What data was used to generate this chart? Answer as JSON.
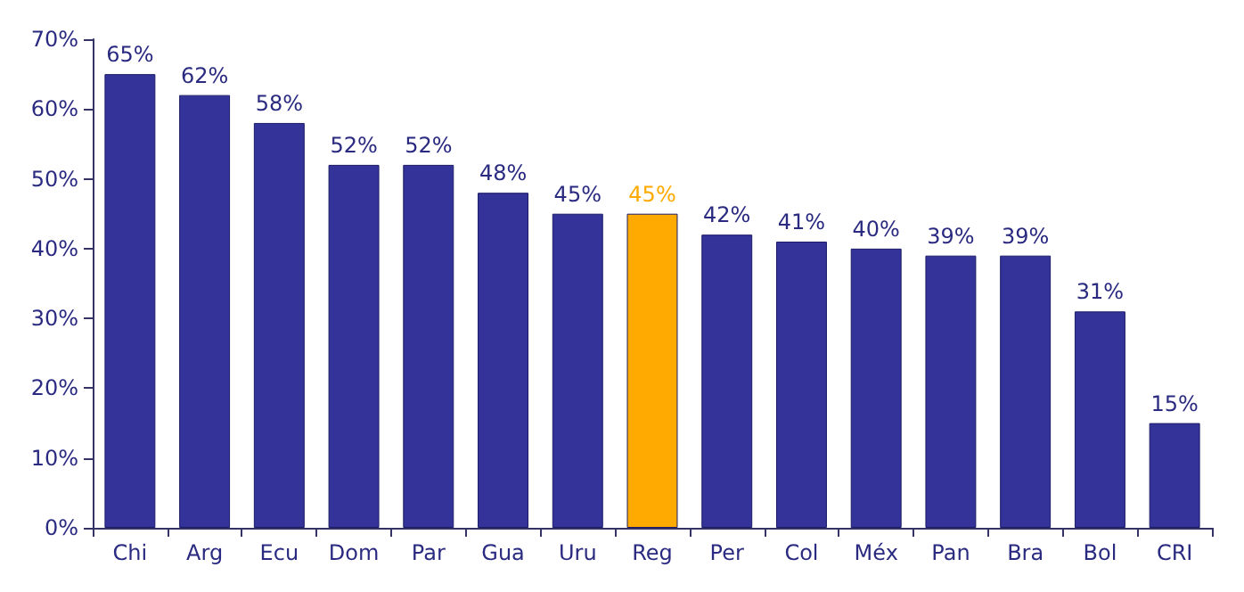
{
  "chart_data": {
    "type": "bar",
    "categories": [
      "Chi",
      "Arg",
      "Ecu",
      "Dom",
      "Par",
      "Gua",
      "Uru",
      "Reg",
      "Per",
      "Col",
      "Méx",
      "Pan",
      "Bra",
      "Bol",
      "CRI"
    ],
    "values": [
      65,
      62,
      58,
      52,
      52,
      48,
      45,
      45,
      42,
      41,
      40,
      39,
      39,
      31,
      15
    ],
    "value_labels": [
      "65%",
      "62%",
      "58%",
      "52%",
      "52%",
      "48%",
      "45%",
      "45%",
      "42%",
      "41%",
      "40%",
      "39%",
      "39%",
      "31%",
      "15%"
    ],
    "colors": [
      "#333399",
      "#333399",
      "#333399",
      "#333399",
      "#333399",
      "#333399",
      "#333399",
      "#ffaa00",
      "#333399",
      "#333399",
      "#333399",
      "#333399",
      "#333399",
      "#333399",
      "#333399"
    ],
    "ylim": [
      0,
      70
    ],
    "yticks": [
      {
        "value": 0,
        "label": "0%"
      },
      {
        "value": 10,
        "label": "10%"
      },
      {
        "value": 20,
        "label": "20%"
      },
      {
        "value": 30,
        "label": "30%"
      },
      {
        "value": 40,
        "label": "40%"
      },
      {
        "value": 50,
        "label": "50%"
      },
      {
        "value": 60,
        "label": "60%"
      },
      {
        "value": 70,
        "label": "70%"
      }
    ],
    "grid": false
  }
}
